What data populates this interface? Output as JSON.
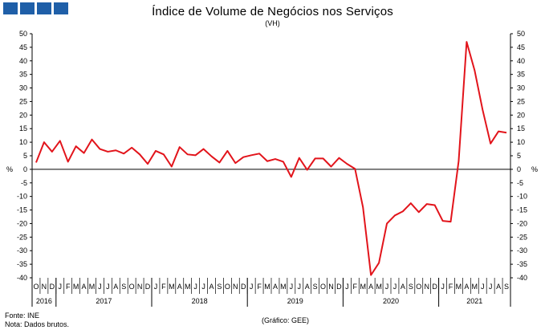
{
  "logo": {
    "icon": "gee-logo-icon",
    "color": "#1f5fa8"
  },
  "chart_data": {
    "type": "line",
    "title": "Índice de Volume de Negócios nos Serviços",
    "subtitle": "(VH)",
    "ylabel_left": "%",
    "ylabel_right": "%",
    "ylim": [
      -40,
      50
    ],
    "yticks": [
      50,
      45,
      40,
      35,
      30,
      25,
      20,
      15,
      10,
      5,
      0,
      -5,
      -10,
      -15,
      -20,
      -25,
      -30,
      -35,
      -40
    ],
    "x": [
      "O",
      "N",
      "D",
      "J",
      "F",
      "M",
      "A",
      "M",
      "J",
      "J",
      "A",
      "S",
      "O",
      "N",
      "D",
      "J",
      "F",
      "M",
      "A",
      "M",
      "J",
      "J",
      "A",
      "S",
      "O",
      "N",
      "D",
      "J",
      "F",
      "M",
      "A",
      "M",
      "J",
      "J",
      "A",
      "S",
      "O",
      "N",
      "D",
      "J",
      "F",
      "M",
      "A",
      "M",
      "J",
      "J",
      "A",
      "S",
      "O",
      "N",
      "D",
      "J",
      "F",
      "M",
      "A",
      "M",
      "J",
      "J",
      "A",
      "S"
    ],
    "years": [
      {
        "label": "2016",
        "start": 0,
        "end": 3
      },
      {
        "label": "2017",
        "start": 3,
        "end": 15
      },
      {
        "label": "2018",
        "start": 15,
        "end": 27
      },
      {
        "label": "2019",
        "start": 27,
        "end": 39
      },
      {
        "label": "2020",
        "start": 39,
        "end": 51
      },
      {
        "label": "2021",
        "start": 51,
        "end": 60
      }
    ],
    "series": [
      {
        "name": "VH",
        "color": "#e2141b",
        "values": [
          2.5,
          10.0,
          6.5,
          10.5,
          2.8,
          8.5,
          6.0,
          11.0,
          7.5,
          6.5,
          7.0,
          5.8,
          8.0,
          5.5,
          2.0,
          6.8,
          5.5,
          1.0,
          8.2,
          5.5,
          5.2,
          7.5,
          4.8,
          2.5,
          6.8,
          2.3,
          4.5,
          5.2,
          5.8,
          3.0,
          3.8,
          2.8,
          -2.8,
          4.2,
          -0.2,
          4.0,
          4.0,
          1.0,
          4.2,
          2.0,
          0.2,
          -14.0,
          -39.0,
          -34.5,
          -20.0,
          -17.0,
          -15.5,
          -12.5,
          -15.8,
          -12.8,
          -13.2,
          -19.0,
          -19.3,
          3.0,
          47.0,
          36.5,
          22.0,
          9.5,
          14.0,
          13.5
        ]
      }
    ]
  },
  "footer": {
    "source": "Fonte: INE",
    "note": "Nota: Dados brutos.",
    "credit": "(Gráfico: GEE)"
  }
}
